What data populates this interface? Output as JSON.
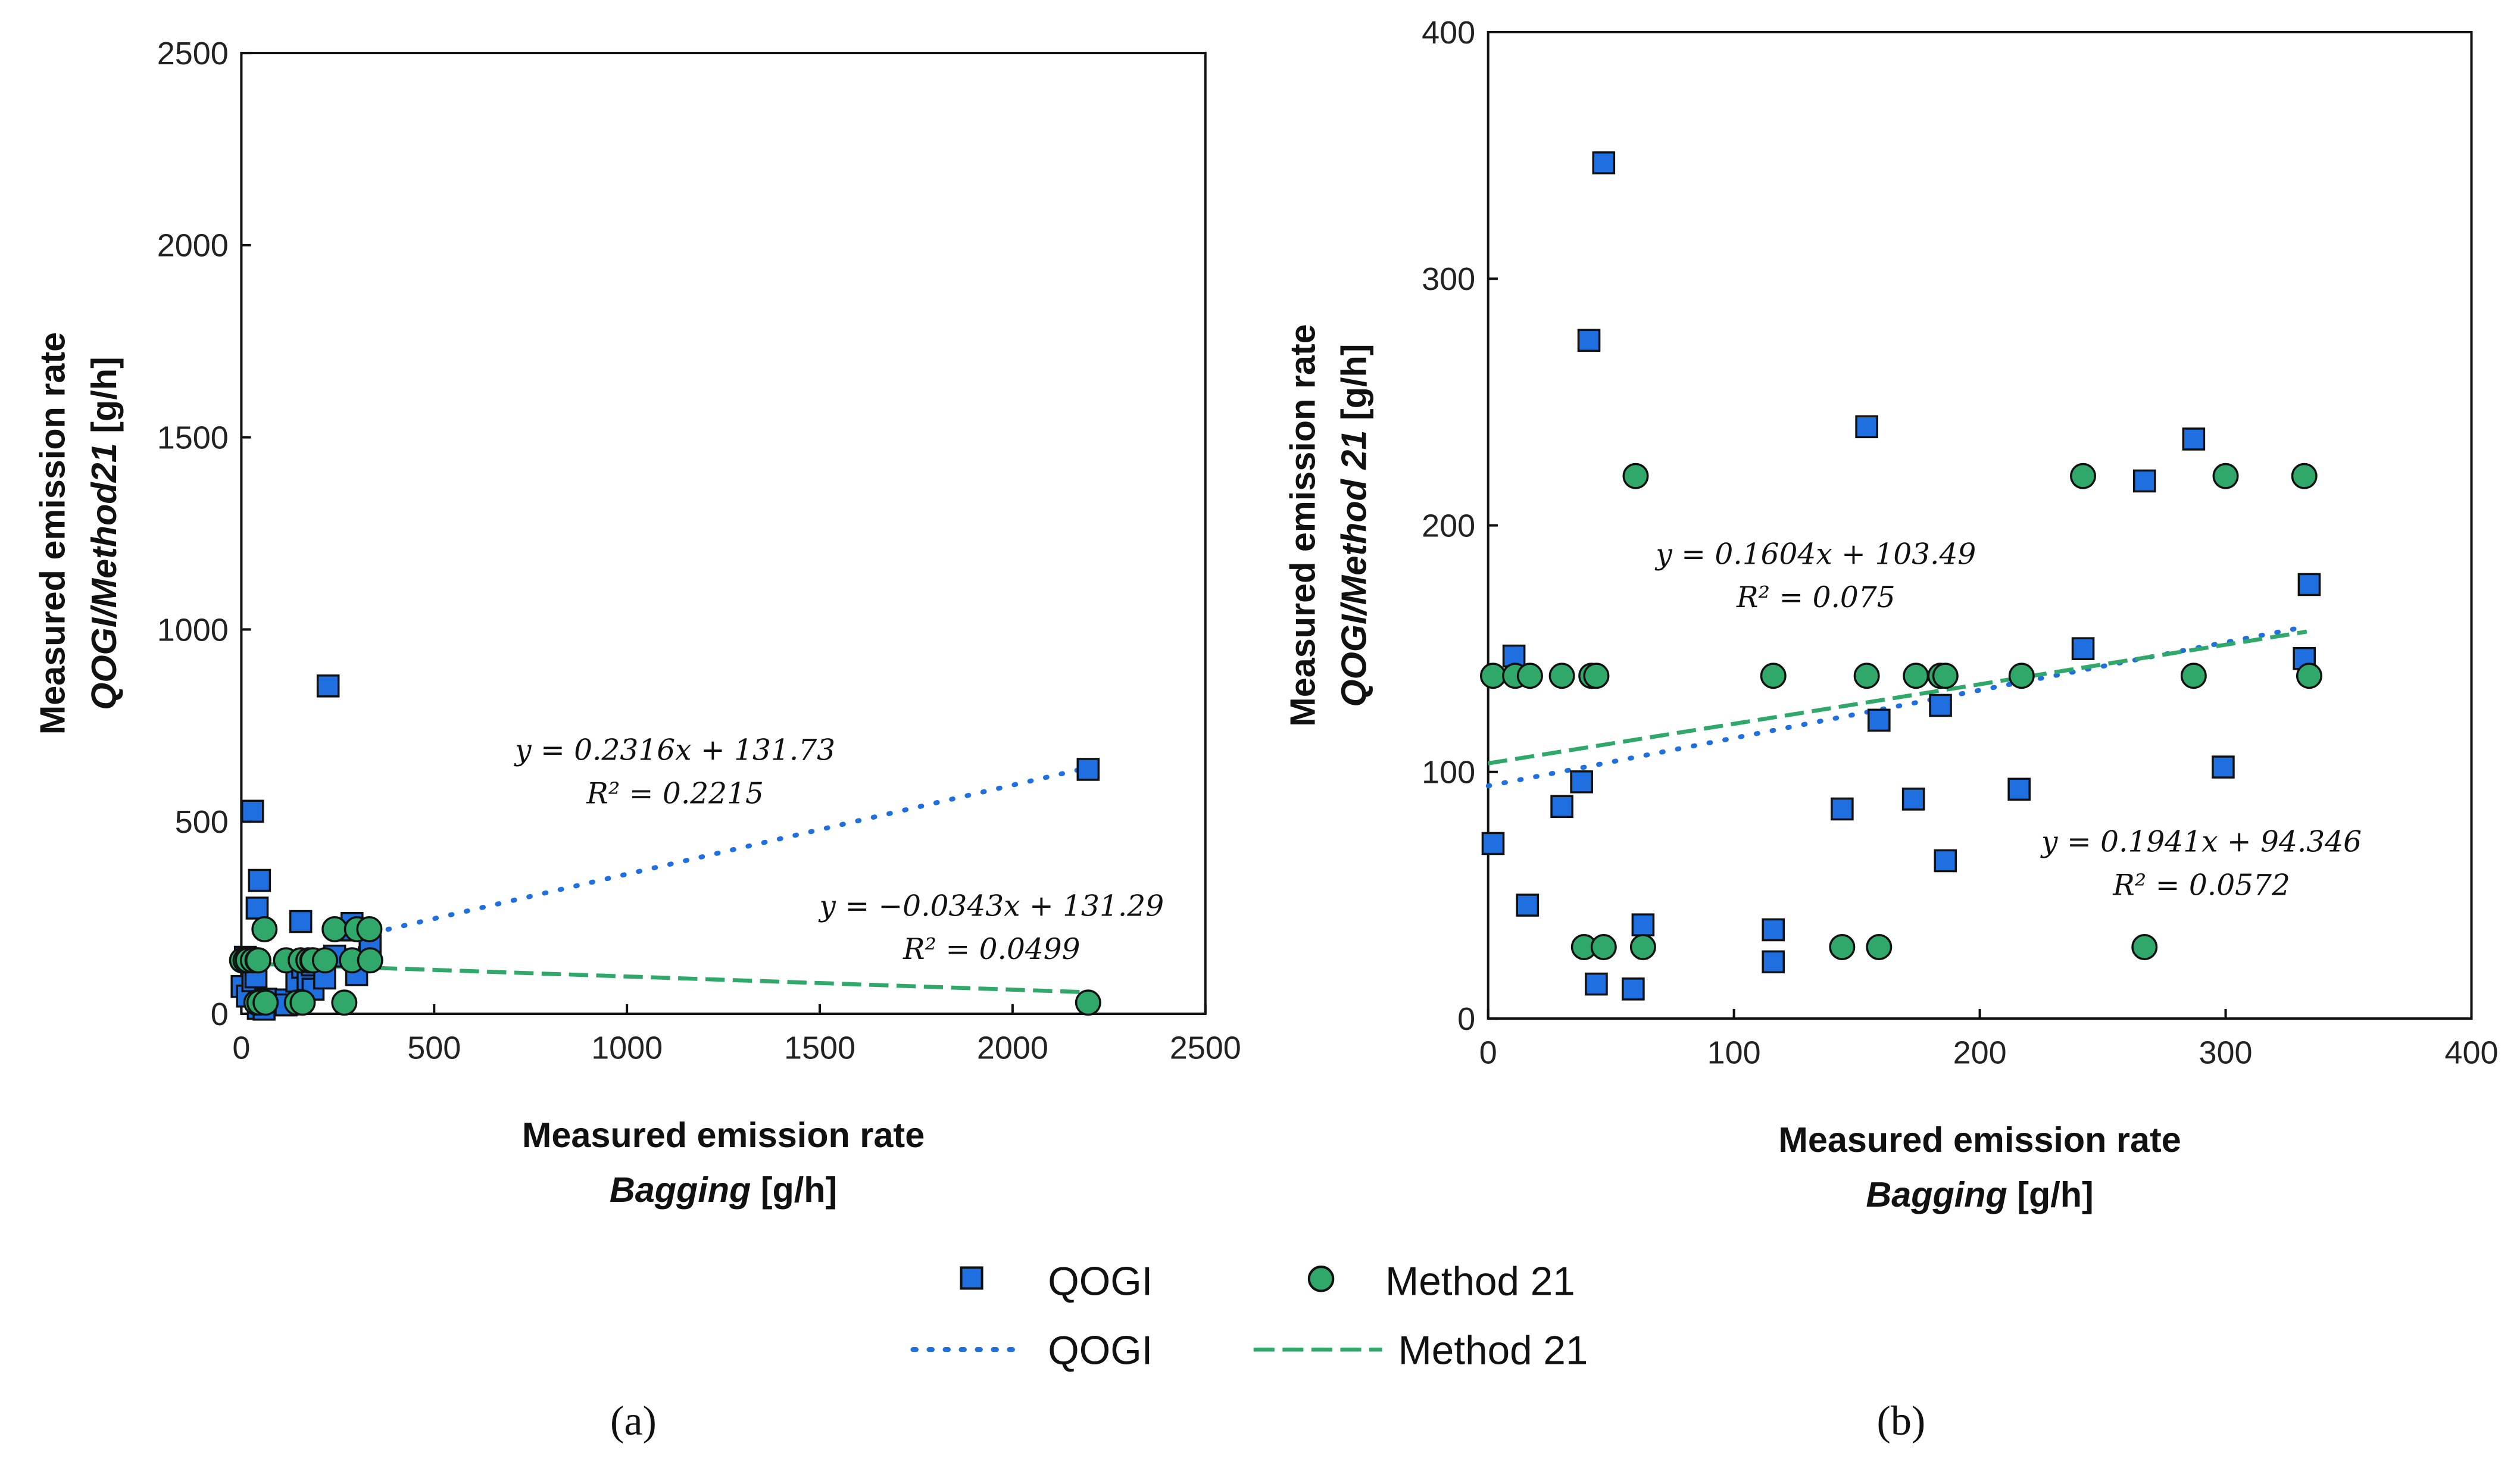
{
  "colors": {
    "qogi": "#1f6fe0",
    "method21": "#2fa86a",
    "qogi_line": "#1f6fe0",
    "method21_line": "#2fa86a"
  },
  "legend": {
    "markers": [
      "QOGI",
      "Method 21"
    ],
    "lines": [
      "QOGI",
      "Method 21"
    ],
    "placement": "bottom-center"
  },
  "chart_data": [
    {
      "type": "scatter",
      "caption": "(a)",
      "xlabel_line1": "Measured emission rate",
      "xlabel_line2_italic": "Bagging",
      "xlabel_line2_unit": " [g/h]",
      "ylabel_line1": "Measured emission rate",
      "ylabel_line2_italic": "QOGI/Method21",
      "ylabel_line2_unit": " [g/h]",
      "xlim": [
        0,
        2500
      ],
      "ylim": [
        0,
        2500
      ],
      "xticks": [
        "0",
        "500",
        "1000",
        "1500",
        "2000",
        "2500"
      ],
      "yticks": [
        "0",
        "500",
        "1000",
        "1500",
        "2000",
        "2500"
      ],
      "extra_series_points": {
        "QOGI": [
          [
            29,
            527
          ],
          [
            225,
            853
          ],
          [
            2196,
            636
          ]
        ],
        "Method 21": [
          [
            2196,
            29
          ]
        ]
      },
      "fits": [
        {
          "series": "QOGI",
          "slope": 0.2316,
          "intercept": 131.73,
          "x_range": [
            380,
            2196
          ],
          "equation": "y = 0.2316x + 131.73",
          "r2": "R² = 0.2215"
        },
        {
          "series": "Method 21",
          "slope": -0.0343,
          "intercept": 131.29,
          "x_range": [
            0,
            2196
          ],
          "equation": "y = −0.0343x + 131.29",
          "r2": "R² = 0.0499"
        }
      ]
    },
    {
      "type": "scatter",
      "caption": "(b)",
      "xlabel_line1": "Measured emission rate",
      "xlabel_line2_italic": "Bagging",
      "xlabel_line2_unit": " [g/h]",
      "ylabel_line1": "Measured emission rate",
      "ylabel_line2_italic": "QOGI/Method 21",
      "ylabel_line2_unit": " [g/h]",
      "xlim": [
        0,
        400
      ],
      "ylim": [
        0,
        400
      ],
      "xticks": [
        "0",
        "100",
        "200",
        "300",
        "400"
      ],
      "yticks": [
        "0",
        "100",
        "200",
        "300",
        "400"
      ],
      "series": [
        {
          "name": "QOGI",
          "marker": "square",
          "points": [
            [
              2,
              71
            ],
            [
              10.5,
              147
            ],
            [
              16,
              46
            ],
            [
              30,
              86
            ],
            [
              38,
              96
            ],
            [
              41,
              275
            ],
            [
              44,
              14
            ],
            [
              47,
              347
            ],
            [
              59,
              12
            ],
            [
              63,
              38
            ],
            [
              116,
              36
            ],
            [
              116,
              23
            ],
            [
              144,
              85
            ],
            [
              154,
              240
            ],
            [
              159,
              121
            ],
            [
              173,
              89
            ],
            [
              184,
              127
            ],
            [
              186,
              64
            ],
            [
              216,
              93
            ],
            [
              242,
              150
            ],
            [
              267,
              218
            ],
            [
              287,
              235
            ],
            [
              299,
              102
            ],
            [
              332,
              146
            ],
            [
              334,
              176
            ]
          ]
        },
        {
          "name": "Method 21",
          "marker": "circle",
          "points": [
            [
              2,
              139
            ],
            [
              11,
              139
            ],
            [
              17,
              139
            ],
            [
              30,
              139
            ],
            [
              39,
              29
            ],
            [
              42,
              139
            ],
            [
              44,
              139
            ],
            [
              47,
              29
            ],
            [
              60,
              220
            ],
            [
              63,
              29
            ],
            [
              116,
              139
            ],
            [
              144,
              29
            ],
            [
              154,
              139
            ],
            [
              159,
              29
            ],
            [
              174,
              139
            ],
            [
              184,
              139
            ],
            [
              186,
              139
            ],
            [
              217,
              139
            ],
            [
              242,
              220
            ],
            [
              267,
              29
            ],
            [
              287,
              139
            ],
            [
              300,
              220
            ],
            [
              332,
              220
            ],
            [
              334,
              139
            ]
          ]
        }
      ],
      "fits": [
        {
          "series": "QOGI",
          "slope": 0.1941,
          "intercept": 94.346,
          "x_range": [
            0,
            333
          ],
          "equation": "y = 0.1941x + 94.346",
          "r2": "R² = 0.0572"
        },
        {
          "series": "Method 21",
          "slope": 0.1604,
          "intercept": 103.49,
          "x_range": [
            0,
            333
          ],
          "equation": "y = 0.1604x + 103.49",
          "r2": "R² = 0.075"
        }
      ]
    }
  ]
}
